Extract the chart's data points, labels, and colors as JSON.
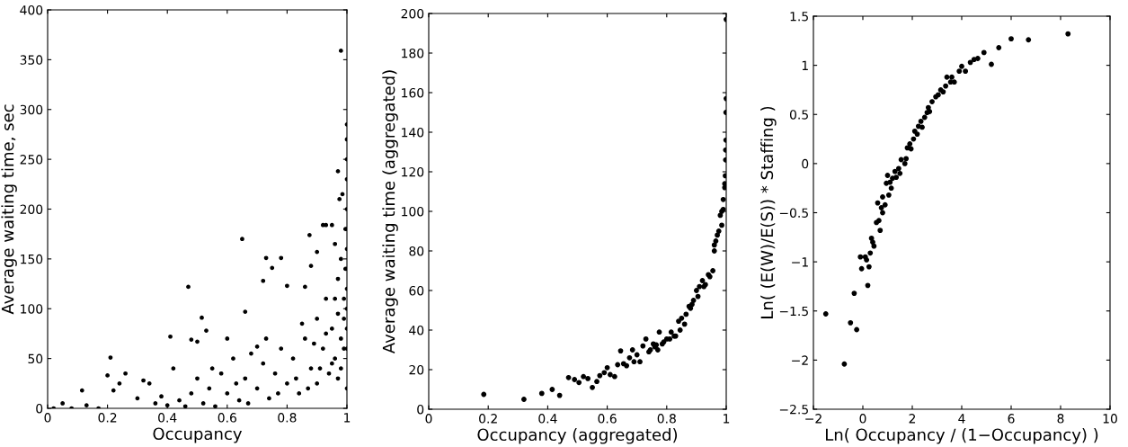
{
  "chart_data": [
    {
      "type": "scatter",
      "xlabel": "Occupancy",
      "ylabel": "Average waiting time, sec",
      "xlim": [
        0,
        1
      ],
      "ylim": [
        0,
        400
      ],
      "xticks": [
        0,
        0.2,
        0.4,
        0.6,
        0.8,
        1
      ],
      "yticks": [
        0,
        50,
        100,
        150,
        200,
        250,
        300,
        350,
        400
      ],
      "grid": false,
      "marker": "circle",
      "series": [
        {
          "color": "#000000",
          "x": [
            0.98,
            0.97,
            0.65,
            0.47,
            0.875,
            0.73,
            0.78,
            0.75,
            0.92,
            0.93,
            0.95,
            0.515,
            0.53,
            0.41,
            0.21,
            0.115,
            0.2,
            0.26,
            0.48,
            0.5,
            0.66,
            0.72,
            0.8,
            0.86,
            0.7,
            0.6,
            0.88,
            0.9,
            0.96,
            0.975,
            0.985,
            1.0,
            1.0,
            1.0,
            1.0,
            1.0,
            1.0,
            1.0,
            1.0,
            1.0,
            1.0,
            1.0,
            1.0,
            1.0,
            0.05,
            0.02,
            0.08,
            0.13,
            0.17,
            0.22,
            0.24,
            0.3,
            0.32,
            0.34,
            0.36,
            0.38,
            0.4,
            0.42,
            0.44,
            0.46,
            0.48,
            0.5,
            0.52,
            0.54,
            0.56,
            0.58,
            0.6,
            0.62,
            0.64,
            0.66,
            0.68,
            0.7,
            0.72,
            0.74,
            0.76,
            0.78,
            0.8,
            0.82,
            0.84,
            0.86,
            0.88,
            0.9,
            0.9,
            0.92,
            0.93,
            0.94,
            0.95,
            0.96,
            0.97,
            0.97,
            0.98,
            0.98,
            0.99,
            0.99,
            0.995,
            0.995,
            0.55,
            0.63,
            0.67,
            0.73,
            0.77,
            0.83,
            0.85,
            0.87,
            0.89,
            0.91,
            0.93,
            0.95,
            0.96,
            0.99,
            0.98,
            0.97
          ],
          "values": [
            359,
            238,
            170,
            122,
            174,
            151,
            151,
            141,
            184,
            184,
            184,
            91,
            78,
            72,
            51,
            18,
            33,
            35,
            69,
            67,
            97,
            128,
            123,
            122,
            62,
            70,
            143,
            157,
            165,
            210,
            215,
            285,
            270,
            250,
            230,
            200,
            180,
            160,
            140,
            120,
            100,
            80,
            60,
            20,
            5,
            0,
            0,
            3,
            0,
            18,
            25,
            10,
            28,
            25,
            5,
            12,
            3,
            40,
            8,
            2,
            15,
            30,
            5,
            20,
            2,
            35,
            15,
            50,
            8,
            30,
            55,
            20,
            45,
            10,
            35,
            60,
            25,
            50,
            15,
            70,
            40,
            25,
            90,
            60,
            110,
            35,
            80,
            50,
            130,
            95,
            70,
            150,
            110,
            60,
            180,
            140,
            40,
            25,
            5,
            70,
            15,
            30,
            85,
            20,
            65,
            40,
            75,
            45,
            110,
            90,
            40,
            30
          ]
        }
      ]
    },
    {
      "type": "scatter",
      "xlabel": "Occupancy (aggregated)",
      "ylabel": "Average waiting time (aggregated)",
      "xlim": [
        0,
        1
      ],
      "ylim": [
        0,
        200
      ],
      "xticks": [
        0,
        0.2,
        0.4,
        0.6,
        0.8,
        1
      ],
      "yticks": [
        0,
        20,
        40,
        60,
        80,
        100,
        120,
        140,
        160,
        180,
        200
      ],
      "grid": false,
      "marker": "circle",
      "series": [
        {
          "color": "#000000",
          "x": [
            0.185,
            0.32,
            0.38,
            0.415,
            0.44,
            0.47,
            0.49,
            0.505,
            0.52,
            0.535,
            0.55,
            0.565,
            0.575,
            0.59,
            0.6,
            0.61,
            0.625,
            0.635,
            0.645,
            0.655,
            0.665,
            0.675,
            0.685,
            0.69,
            0.7,
            0.71,
            0.72,
            0.73,
            0.74,
            0.745,
            0.755,
            0.76,
            0.765,
            0.77,
            0.775,
            0.785,
            0.79,
            0.8,
            0.81,
            0.815,
            0.825,
            0.83,
            0.84,
            0.845,
            0.85,
            0.86,
            0.865,
            0.875,
            0.88,
            0.885,
            0.89,
            0.9,
            0.905,
            0.91,
            0.92,
            0.925,
            0.93,
            0.94,
            0.945,
            0.955,
            0.96,
            0.96,
            0.965,
            0.97,
            0.975,
            0.98,
            0.985,
            0.985,
            0.99,
            0.99,
            0.995,
            0.995,
            0.997,
            0.998,
            0.998,
            0.999,
            0.999,
            1.0,
            1.0
          ],
          "values": [
            7.5,
            5,
            8,
            10,
            7,
            16,
            15,
            13.5,
            16.5,
            15.5,
            11,
            14,
            17,
            18.5,
            21,
            17.5,
            16.5,
            22.5,
            29.5,
            23,
            22,
            26,
            30,
            24,
            27.5,
            24,
            32,
            35.5,
            29,
            30,
            33,
            31.5,
            32.5,
            30,
            39,
            33,
            34,
            35.5,
            35.5,
            39,
            37,
            37,
            44.5,
            40,
            46,
            43,
            48,
            52,
            51,
            53,
            55,
            60,
            57,
            62,
            65,
            62,
            63,
            68,
            67,
            70,
            80,
            83,
            85,
            88,
            90,
            98,
            100,
            93,
            101,
            106,
            112,
            114,
            118,
            126,
            131,
            136,
            150,
            157,
            197
          ]
        }
      ]
    },
    {
      "type": "scatter",
      "xlabel": "Ln( Occupancy / (1−Occupancy) )",
      "ylabel": "Ln( (E(W)/E(S)) * Staffing )",
      "xlim": [
        -2,
        10
      ],
      "ylim": [
        -2.5,
        1.5
      ],
      "xticks": [
        {
          "value": -2,
          "label": "−2"
        },
        0,
        2,
        4,
        6,
        8,
        10
      ],
      "yticks": [
        {
          "value": -2.5,
          "label": "−2.5"
        },
        {
          "value": -2,
          "label": "−2"
        },
        {
          "value": -1.5,
          "label": "−1.5"
        },
        {
          "value": -1,
          "label": "−1"
        },
        {
          "value": -0.5,
          "label": "−0.5"
        },
        0,
        0.5,
        1,
        1.5
      ],
      "grid": false,
      "marker": "circle",
      "series": [
        {
          "color": "#000000",
          "x": [
            -1.5,
            -0.75,
            -0.5,
            -0.35,
            -0.25,
            -0.1,
            -0.05,
            0.1,
            0.15,
            0.2,
            0.25,
            0.3,
            0.35,
            0.4,
            0.45,
            0.55,
            0.6,
            0.65,
            0.7,
            0.75,
            0.8,
            0.8,
            0.9,
            0.95,
            1.0,
            1.05,
            1.1,
            1.15,
            1.2,
            1.3,
            1.35,
            1.45,
            1.5,
            1.55,
            1.7,
            1.75,
            1.8,
            1.9,
            1.95,
            2.05,
            2.1,
            2.2,
            2.25,
            2.35,
            2.4,
            2.5,
            2.6,
            2.65,
            2.7,
            2.8,
            2.95,
            3.05,
            3.15,
            3.25,
            3.35,
            3.4,
            3.55,
            3.6,
            3.7,
            3.9,
            4.0,
            4.15,
            4.35,
            4.5,
            4.65,
            4.9,
            5.2,
            5.5,
            6.0,
            6.7,
            8.3
          ],
          "values": [
            -1.53,
            -2.04,
            -1.62,
            -1.32,
            -1.69,
            -0.95,
            -1.07,
            -0.95,
            -0.98,
            -1.24,
            -1.05,
            -0.91,
            -0.76,
            -0.8,
            -0.84,
            -0.6,
            -0.4,
            -0.58,
            -0.68,
            -0.45,
            -0.34,
            -0.5,
            -0.42,
            -0.2,
            -0.12,
            -0.32,
            -0.19,
            -0.25,
            -0.15,
            -0.08,
            -0.14,
            -0.05,
            -0.1,
            0.04,
            0.0,
            0.05,
            0.16,
            0.2,
            0.15,
            0.25,
            0.33,
            0.3,
            0.38,
            0.43,
            0.37,
            0.47,
            0.52,
            0.57,
            0.53,
            0.63,
            0.68,
            0.7,
            0.75,
            0.73,
            0.79,
            0.88,
            0.83,
            0.88,
            0.83,
            0.94,
            0.99,
            0.94,
            1.03,
            1.06,
            1.07,
            1.13,
            1.01,
            1.18,
            1.27,
            1.26,
            1.32
          ]
        }
      ]
    }
  ]
}
